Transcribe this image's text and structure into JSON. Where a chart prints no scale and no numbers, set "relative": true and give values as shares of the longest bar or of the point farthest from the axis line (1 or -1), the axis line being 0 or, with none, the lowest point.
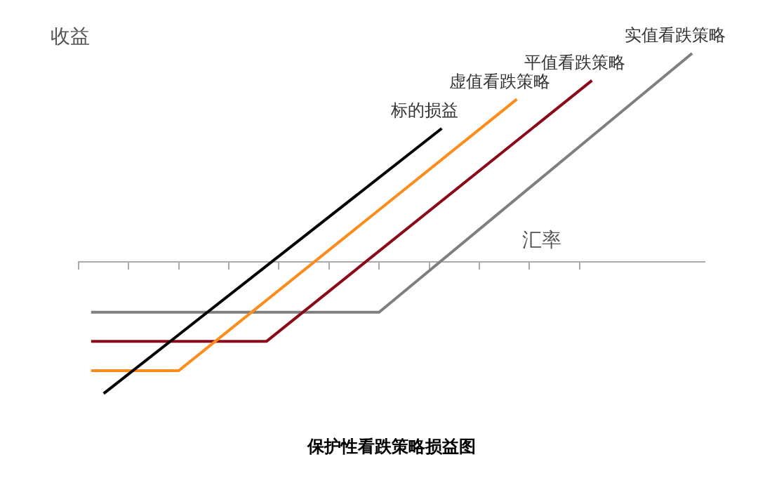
{
  "chart_data": {
    "type": "line",
    "title": "保护性看跌策略损益图",
    "xlabel": "汇率",
    "ylabel": "收益",
    "relative": true,
    "categories": [
      null,
      null,
      null,
      null,
      null,
      null,
      null,
      null,
      null,
      null,
      null,
      null,
      null,
      null,
      null,
      null,
      null,
      null,
      null,
      null,
      null,
      null,
      null,
      null,
      null,
      null,
      null,
      null,
      null,
      null,
      null,
      null,
      null,
      null,
      null,
      null,
      null,
      null,
      null,
      null,
      null,
      null,
      null,
      null,
      null,
      null,
      null,
      null,
      null,
      null,
      null
    ],
    "grid": false,
    "legend": false,
    "marker": "none",
    "line_style": "solid",
    "series": [
      {
        "name": "标的损益",
        "color": "#000000",
        "values": [
          null,
          null,
          -0.63,
          null,
          null,
          null,
          null,
          null,
          null,
          null,
          null,
          null,
          null,
          null,
          null,
          null,
          null,
          null,
          null,
          null,
          null,
          null,
          null,
          null,
          null,
          null,
          null,
          null,
          null,
          0.64,
          null,
          null,
          null,
          null,
          null,
          null,
          null,
          null,
          null,
          null,
          null,
          null,
          null,
          null,
          null,
          null,
          null,
          null,
          null,
          null,
          null
        ]
      },
      {
        "name": "虚值看跌策略",
        "color": "#ff8c1a",
        "values": [
          null,
          -0.52,
          null,
          null,
          null,
          null,
          null,
          null,
          -0.52,
          null,
          null,
          null,
          null,
          null,
          null,
          null,
          null,
          null,
          null,
          null,
          null,
          null,
          null,
          null,
          null,
          null,
          null,
          null,
          null,
          null,
          null,
          null,
          null,
          null,
          null,
          0.78,
          null,
          null,
          null,
          null,
          null,
          null,
          null,
          null,
          null,
          null,
          null,
          null,
          null,
          null,
          null
        ]
      },
      {
        "name": "平值看跌策略",
        "color": "#8b0a1a",
        "values": [
          null,
          -0.38,
          null,
          null,
          null,
          null,
          null,
          null,
          null,
          null,
          null,
          null,
          null,
          null,
          null,
          -0.38,
          null,
          null,
          null,
          null,
          null,
          null,
          null,
          null,
          null,
          null,
          null,
          null,
          null,
          null,
          null,
          null,
          null,
          null,
          null,
          null,
          null,
          null,
          null,
          null,
          null,
          0.87,
          null,
          null,
          null,
          null,
          null,
          null,
          null,
          null,
          null
        ]
      },
      {
        "name": "实值看跌策略",
        "color": "#7f7f7f",
        "values": [
          null,
          -0.24,
          null,
          null,
          null,
          null,
          null,
          null,
          null,
          null,
          null,
          null,
          null,
          null,
          null,
          null,
          null,
          null,
          null,
          null,
          null,
          null,
          null,
          null,
          -0.24,
          null,
          null,
          null,
          null,
          null,
          null,
          null,
          null,
          null,
          null,
          null,
          null,
          null,
          null,
          null,
          null,
          null,
          null,
          null,
          null,
          null,
          null,
          null,
          null,
          1,
          null
        ]
      }
    ]
  }
}
